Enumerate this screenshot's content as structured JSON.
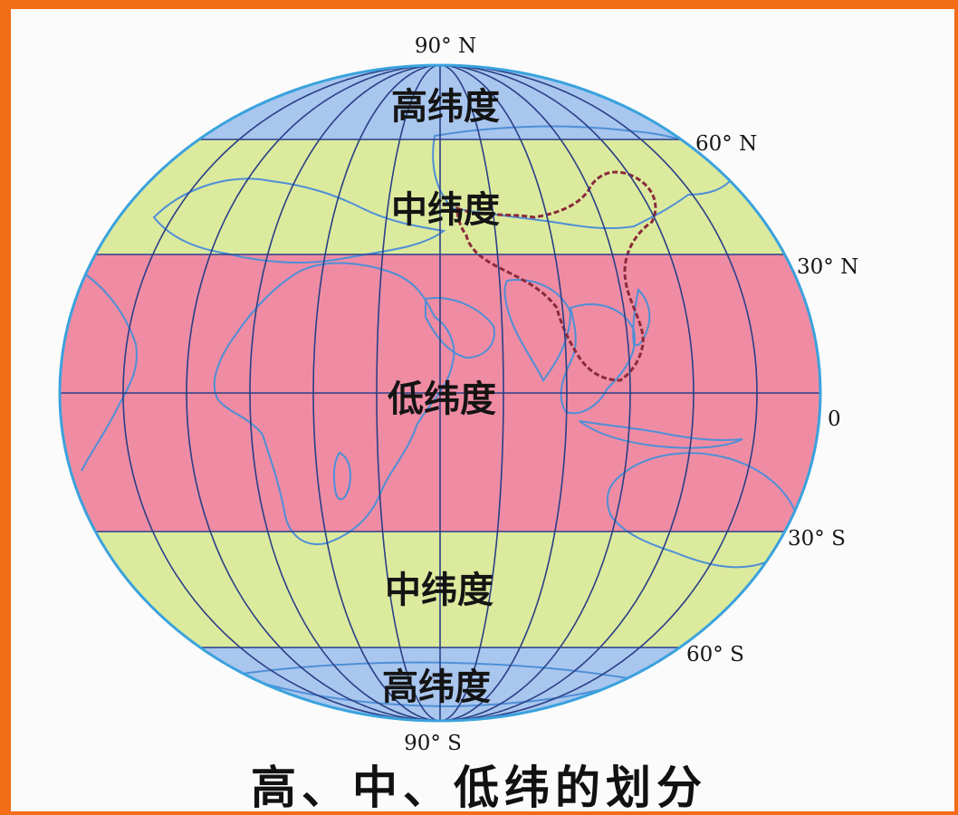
{
  "title": "高、中、低纬的划分",
  "zones": {
    "high_north": "高纬度",
    "mid_north": "中纬度",
    "low": "低纬度",
    "mid_south": "中纬度",
    "high_south": "高纬度"
  },
  "latitude_labels": {
    "n90": "90° N",
    "n60": "60° N",
    "n30": "30° N",
    "equator": "0",
    "s30": "30° S",
    "s60": "60° S",
    "s90": "90° S"
  },
  "colors": {
    "frame": "#f36c18",
    "high_latitude": "#a9c6ee",
    "mid_latitude": "#dcea9e",
    "low_latitude": "#ef8ca3",
    "grid_lines": "#2a3f86",
    "coastlines": "#4f8fd6",
    "china_border": "#8a2a3a",
    "globe_outline": "#3aa2dd"
  }
}
